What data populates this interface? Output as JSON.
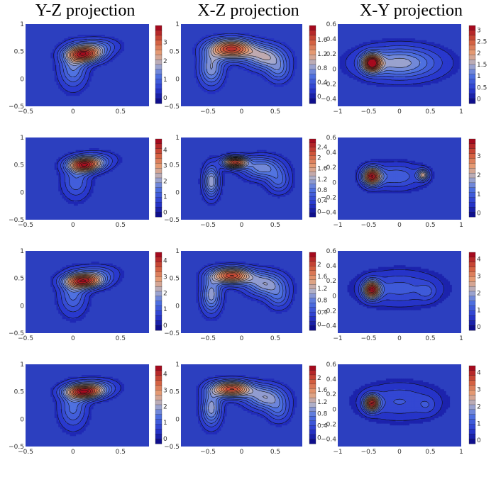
{
  "columns": [
    {
      "title": "Y-Z projection"
    },
    {
      "title": "X-Z projection"
    },
    {
      "title": "X-Y projection"
    }
  ],
  "chart_data": [
    {
      "type": "contour",
      "row": 1,
      "projection": "Y-Z",
      "x_ticks": [
        "−0.5",
        "0",
        "0.5"
      ],
      "y_ticks": [
        "1",
        "0.5",
        "0",
        "−0.5"
      ],
      "xlim": [
        -0.5,
        0.8
      ],
      "ylim": [
        -0.5,
        1
      ],
      "colorbar_ticks": [
        "3",
        "2",
        "1",
        "0"
      ],
      "colorbar_range": [
        -0.3,
        3.9
      ],
      "levels": 15,
      "peaks": [
        {
          "x": 0.12,
          "y": 0.45,
          "amp": 3.4,
          "sx": 0.13,
          "sy": 0.1
        },
        {
          "x": 0.0,
          "y": 0.2,
          "amp": 1.3,
          "sx": 0.1,
          "sy": 0.25
        },
        {
          "x": 0.25,
          "y": 0.6,
          "amp": 1.0,
          "sx": 0.15,
          "sy": 0.1
        }
      ]
    },
    {
      "type": "contour",
      "row": 1,
      "projection": "X-Z",
      "x_ticks": [
        "−0.5",
        "0",
        "0.5"
      ],
      "y_ticks": [
        "1",
        "0.5",
        "0",
        "−0.5"
      ],
      "xlim": [
        -0.9,
        0.9
      ],
      "ylim": [
        -0.5,
        1
      ],
      "colorbar_ticks": [
        "1.6",
        "1.2",
        "0.8",
        "0.4",
        "0"
      ],
      "colorbar_range": [
        -0.2,
        2.0
      ],
      "levels": 15,
      "peaks": [
        {
          "x": -0.15,
          "y": 0.55,
          "amp": 1.8,
          "sx": 0.22,
          "sy": 0.12
        },
        {
          "x": 0.35,
          "y": 0.4,
          "amp": 0.9,
          "sx": 0.2,
          "sy": 0.15
        },
        {
          "x": -0.45,
          "y": 0.2,
          "amp": 0.8,
          "sx": 0.12,
          "sy": 0.22
        },
        {
          "x": 0.55,
          "y": 0.15,
          "amp": 0.5,
          "sx": 0.12,
          "sy": 0.15
        }
      ]
    },
    {
      "type": "contour",
      "row": 1,
      "projection": "X-Y",
      "x_ticks": [
        "−1",
        "−0.5",
        "0",
        "0.5",
        "1"
      ],
      "y_ticks": [
        "0.6",
        "0.4",
        "0.2",
        "0",
        "−0.2",
        "−0.4"
      ],
      "xlim": [
        -1,
        1
      ],
      "ylim": [
        -0.5,
        0.6
      ],
      "colorbar_ticks": [
        "3",
        "2.5",
        "2",
        "1.5",
        "1",
        "0.5",
        "0"
      ],
      "colorbar_range": [
        -0.2,
        3.2
      ],
      "levels": 15,
      "peaks": [
        {
          "x": -0.45,
          "y": 0.08,
          "amp": 3.0,
          "sx": 0.1,
          "sy": 0.08
        },
        {
          "x": 0.0,
          "y": 0.08,
          "amp": 1.4,
          "sx": 0.45,
          "sy": 0.15
        }
      ]
    },
    {
      "type": "contour",
      "row": 2,
      "projection": "Y-Z",
      "x_ticks": [
        "−0.5",
        "0",
        "0.5"
      ],
      "y_ticks": [
        "1",
        "0.5",
        "0",
        "−0.5"
      ],
      "xlim": [
        -0.5,
        0.8
      ],
      "ylim": [
        -0.5,
        1
      ],
      "colorbar_ticks": [
        "4",
        "3",
        "2",
        "1",
        "0"
      ],
      "colorbar_range": [
        -0.3,
        4.7
      ],
      "levels": 15,
      "peaks": [
        {
          "x": 0.12,
          "y": 0.5,
          "amp": 4.2,
          "sx": 0.12,
          "sy": 0.09
        },
        {
          "x": 0.03,
          "y": 0.2,
          "amp": 1.2,
          "sx": 0.1,
          "sy": 0.22
        },
        {
          "x": 0.25,
          "y": 0.6,
          "amp": 1.0,
          "sx": 0.14,
          "sy": 0.1
        }
      ]
    },
    {
      "type": "contour",
      "row": 2,
      "projection": "X-Z",
      "x_ticks": [
        "−0.5",
        "0",
        "0.5"
      ],
      "y_ticks": [
        "1",
        "0.5",
        "0",
        "−0.5"
      ],
      "xlim": [
        -0.9,
        0.9
      ],
      "ylim": [
        -0.5,
        1
      ],
      "colorbar_ticks": [
        "2.4",
        "2",
        "1.6",
        "1.2",
        "0.8",
        "0.4",
        "0"
      ],
      "colorbar_range": [
        -0.2,
        2.7
      ],
      "levels": 18,
      "peaks": [
        {
          "x": -0.1,
          "y": 0.55,
          "amp": 2.4,
          "sx": 0.12,
          "sy": 0.07
        },
        {
          "x": 0.3,
          "y": 0.45,
          "amp": 1.0,
          "sx": 0.2,
          "sy": 0.14
        },
        {
          "x": -0.45,
          "y": 0.2,
          "amp": 1.2,
          "sx": 0.08,
          "sy": 0.2
        },
        {
          "x": 0.55,
          "y": 0.2,
          "amp": 0.6,
          "sx": 0.12,
          "sy": 0.15
        }
      ]
    },
    {
      "type": "contour",
      "row": 2,
      "projection": "X-Y",
      "x_ticks": [
        "−1",
        "−0.5",
        "0",
        "0.5",
        "1"
      ],
      "y_ticks": [
        "0.6",
        "0.4",
        "0.2",
        "0",
        "−0.2",
        "−0.4"
      ],
      "xlim": [
        -1,
        1
      ],
      "ylim": [
        -0.5,
        0.6
      ],
      "colorbar_ticks": [
        "3",
        "2",
        "1",
        "0"
      ],
      "colorbar_range": [
        -0.2,
        3.9
      ],
      "levels": 15,
      "peaks": [
        {
          "x": -0.45,
          "y": 0.08,
          "amp": 3.6,
          "sx": 0.1,
          "sy": 0.08
        },
        {
          "x": 0.38,
          "y": 0.1,
          "amp": 2.0,
          "sx": 0.06,
          "sy": 0.05
        },
        {
          "x": -0.05,
          "y": 0.08,
          "amp": 1.0,
          "sx": 0.3,
          "sy": 0.12
        }
      ]
    },
    {
      "type": "contour",
      "row": 3,
      "projection": "Y-Z",
      "x_ticks": [
        "−0.5",
        "0",
        "0.5"
      ],
      "y_ticks": [
        "1",
        "0.5",
        "0",
        "−0.5"
      ],
      "xlim": [
        -0.5,
        0.8
      ],
      "ylim": [
        -0.5,
        1
      ],
      "colorbar_ticks": [
        "4",
        "3",
        "2",
        "1",
        "0"
      ],
      "colorbar_range": [
        -0.3,
        4.5
      ],
      "levels": 15,
      "peaks": [
        {
          "x": 0.12,
          "y": 0.45,
          "amp": 4.0,
          "sx": 0.14,
          "sy": 0.09
        },
        {
          "x": 0.0,
          "y": 0.2,
          "amp": 1.3,
          "sx": 0.1,
          "sy": 0.25
        },
        {
          "x": 0.25,
          "y": 0.6,
          "amp": 1.0,
          "sx": 0.15,
          "sy": 0.1
        }
      ]
    },
    {
      "type": "contour",
      "row": 3,
      "projection": "X-Z",
      "x_ticks": [
        "−0.5",
        "0",
        "0.5"
      ],
      "y_ticks": [
        "1",
        "0.5",
        "0",
        "−0.5"
      ],
      "xlim": [
        -0.9,
        0.9
      ],
      "ylim": [
        -0.5,
        1
      ],
      "colorbar_ticks": [
        "2",
        "1.6",
        "1.2",
        "0.8",
        "0.4",
        "0"
      ],
      "colorbar_range": [
        -0.2,
        2.4
      ],
      "levels": 16,
      "peaks": [
        {
          "x": -0.15,
          "y": 0.55,
          "amp": 2.1,
          "sx": 0.2,
          "sy": 0.1
        },
        {
          "x": 0.35,
          "y": 0.4,
          "amp": 1.0,
          "sx": 0.2,
          "sy": 0.15
        },
        {
          "x": -0.45,
          "y": 0.2,
          "amp": 1.0,
          "sx": 0.1,
          "sy": 0.22
        },
        {
          "x": 0.55,
          "y": 0.15,
          "amp": 0.5,
          "sx": 0.12,
          "sy": 0.15
        }
      ]
    },
    {
      "type": "contour",
      "row": 3,
      "projection": "X-Y",
      "x_ticks": [
        "−1",
        "−0.5",
        "0",
        "0.5",
        "1"
      ],
      "y_ticks": [
        "0.6",
        "0.4",
        "0.2",
        "0",
        "−0.2",
        "−0.4"
      ],
      "xlim": [
        -1,
        1
      ],
      "ylim": [
        -0.5,
        0.6
      ],
      "colorbar_ticks": [
        "4",
        "3",
        "2",
        "1",
        "0"
      ],
      "colorbar_range": [
        -0.2,
        4.4
      ],
      "levels": 15,
      "peaks": [
        {
          "x": -0.45,
          "y": 0.08,
          "amp": 4.0,
          "sx": 0.09,
          "sy": 0.08
        },
        {
          "x": 0.0,
          "y": 0.1,
          "amp": 1.0,
          "sx": 0.45,
          "sy": 0.16
        },
        {
          "x": 0.45,
          "y": 0.05,
          "amp": 0.5,
          "sx": 0.1,
          "sy": 0.08
        }
      ]
    },
    {
      "type": "contour",
      "row": 4,
      "projection": "Y-Z",
      "x_ticks": [
        "−0.5",
        "0",
        "0.5"
      ],
      "y_ticks": [
        "1",
        "0.5",
        "0",
        "−0.5"
      ],
      "xlim": [
        -0.5,
        0.8
      ],
      "ylim": [
        -0.5,
        1
      ],
      "colorbar_ticks": [
        "4",
        "3",
        "2",
        "1",
        "0"
      ],
      "colorbar_range": [
        -0.3,
        4.5
      ],
      "levels": 15,
      "peaks": [
        {
          "x": 0.12,
          "y": 0.5,
          "amp": 4.0,
          "sx": 0.14,
          "sy": 0.09
        },
        {
          "x": 0.0,
          "y": 0.2,
          "amp": 1.3,
          "sx": 0.1,
          "sy": 0.25
        },
        {
          "x": 0.25,
          "y": 0.6,
          "amp": 1.0,
          "sx": 0.15,
          "sy": 0.1
        }
      ]
    },
    {
      "type": "contour",
      "row": 4,
      "projection": "X-Z",
      "x_ticks": [
        "−0.5",
        "0",
        "0.5"
      ],
      "y_ticks": [
        "1",
        "0.5",
        "0",
        "−0.5"
      ],
      "xlim": [
        -0.9,
        0.9
      ],
      "ylim": [
        -0.5,
        1
      ],
      "colorbar_ticks": [
        "2",
        "1.6",
        "1.2",
        "0.8",
        "0.4",
        "0"
      ],
      "colorbar_range": [
        -0.2,
        2.4
      ],
      "levels": 16,
      "peaks": [
        {
          "x": -0.15,
          "y": 0.55,
          "amp": 2.1,
          "sx": 0.2,
          "sy": 0.1
        },
        {
          "x": 0.35,
          "y": 0.4,
          "amp": 1.0,
          "sx": 0.2,
          "sy": 0.15
        },
        {
          "x": -0.45,
          "y": 0.2,
          "amp": 1.0,
          "sx": 0.1,
          "sy": 0.22
        },
        {
          "x": 0.55,
          "y": 0.15,
          "amp": 0.5,
          "sx": 0.12,
          "sy": 0.15
        }
      ]
    },
    {
      "type": "contour",
      "row": 4,
      "projection": "X-Y",
      "x_ticks": [
        "−1",
        "−0.5",
        "0",
        "0.5",
        "1"
      ],
      "y_ticks": [
        "0.6",
        "0.4",
        "0.2",
        "0",
        "−0.2",
        "−0.4"
      ],
      "xlim": [
        -1,
        1
      ],
      "ylim": [
        -0.5,
        0.6
      ],
      "colorbar_ticks": [
        "4",
        "3",
        "2",
        "1",
        "0"
      ],
      "colorbar_range": [
        -0.2,
        4.4
      ],
      "levels": 15,
      "peaks": [
        {
          "x": -0.45,
          "y": 0.08,
          "amp": 4.0,
          "sx": 0.08,
          "sy": 0.07
        },
        {
          "x": 0.0,
          "y": 0.1,
          "amp": 0.9,
          "sx": 0.45,
          "sy": 0.17
        },
        {
          "x": 0.45,
          "y": 0.05,
          "amp": 0.4,
          "sx": 0.1,
          "sy": 0.08
        }
      ]
    }
  ]
}
